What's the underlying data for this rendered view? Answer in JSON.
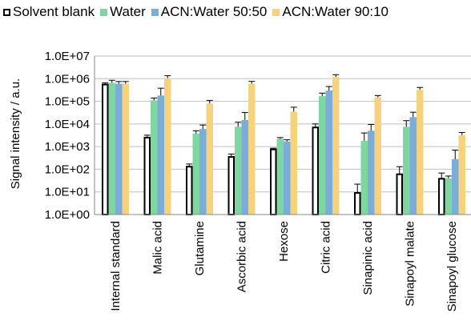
{
  "chart_data": {
    "type": "bar",
    "title": "",
    "xlabel": "",
    "ylabel": "Signal intensity / a.u.",
    "yscale": "log",
    "ylim": [
      1,
      10000000
    ],
    "yticks": [
      "1.0E+00",
      "1.0E+01",
      "1.0E+02",
      "1.0E+03",
      "1.0E+04",
      "1.0E+05",
      "1.0E+06",
      "1.0E+07"
    ],
    "grid": "horizontal",
    "legend": "top",
    "categories": [
      "Internal standard",
      "Malic acid",
      "Glutamine",
      "Ascorbic acid",
      "Hexose",
      "Citric acid",
      "Sinapinic acid",
      "Sinapoyl malate",
      "Sinapoyl glucose"
    ],
    "series": [
      {
        "name": "Solvent blank",
        "color": "#000000",
        "style": "outline",
        "values": [
          550000,
          2500,
          130,
          350,
          750,
          7000,
          9,
          60,
          38
        ],
        "err_high": [
          650000,
          3200,
          170,
          470,
          850,
          10000,
          22,
          130,
          68
        ]
      },
      {
        "name": "Water",
        "color": "#7fd6a0",
        "style": "filled",
        "values": [
          650000,
          110000,
          3800,
          7500,
          2200,
          170000,
          1800,
          7500,
          40
        ],
        "err_high": [
          850000,
          140000,
          5000,
          12000,
          2500,
          230000,
          4000,
          14000,
          50
        ]
      },
      {
        "name": "ACN:Water 50:50",
        "color": "#7aaed8",
        "style": "filled",
        "values": [
          600000,
          180000,
          6000,
          15000,
          1700,
          300000,
          5000,
          20000,
          280
        ],
        "err_high": [
          750000,
          380000,
          9000,
          32000,
          2000,
          450000,
          9500,
          33000,
          700
        ]
      },
      {
        "name": "ACN:Water 90:10",
        "color": "#f5d37e",
        "style": "filled",
        "values": [
          600000,
          1050000,
          80000,
          600000,
          35000,
          1200000,
          150000,
          320000,
          3200
        ],
        "err_high": [
          750000,
          1350000,
          110000,
          760000,
          55000,
          1500000,
          180000,
          410000,
          4200
        ]
      }
    ]
  }
}
